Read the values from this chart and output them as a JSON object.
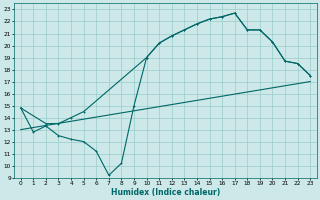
{
  "xlabel": "Humidex (Indice chaleur)",
  "xlim": [
    -0.5,
    23.5
  ],
  "ylim": [
    9,
    23.5
  ],
  "yticks": [
    9,
    10,
    11,
    12,
    13,
    14,
    15,
    16,
    17,
    18,
    19,
    20,
    21,
    22,
    23
  ],
  "xticks": [
    0,
    1,
    2,
    3,
    4,
    5,
    6,
    7,
    8,
    9,
    10,
    11,
    12,
    13,
    14,
    15,
    16,
    17,
    18,
    19,
    20,
    21,
    22,
    23
  ],
  "bg_color": "#cce8e8",
  "grid_color": "#99cccc",
  "line_color": "#006666",
  "line1_x": [
    0,
    23
  ],
  "line1_y": [
    13.0,
    17.0
  ],
  "line2_x": [
    0,
    2,
    3,
    4,
    5,
    10,
    11,
    12,
    13,
    14,
    15,
    16,
    17,
    18,
    19,
    20,
    21,
    22,
    23
  ],
  "line2_y": [
    14.8,
    13.5,
    13.5,
    14.0,
    14.5,
    19.0,
    20.2,
    20.8,
    21.3,
    21.8,
    22.2,
    22.4,
    22.7,
    21.3,
    21.3,
    20.3,
    18.7,
    18.5,
    17.5
  ],
  "line3_x": [
    0,
    1,
    2,
    3,
    4,
    5,
    6,
    7,
    8,
    9,
    10,
    11,
    12,
    13,
    14,
    15,
    16,
    17,
    18,
    19,
    20,
    21,
    22,
    23
  ],
  "line3_y": [
    14.8,
    12.8,
    13.3,
    12.5,
    12.2,
    12.0,
    11.2,
    9.2,
    10.2,
    15.0,
    19.0,
    20.2,
    20.8,
    21.3,
    21.8,
    22.2,
    22.4,
    22.7,
    21.3,
    21.3,
    20.3,
    18.7,
    18.5,
    17.5
  ]
}
